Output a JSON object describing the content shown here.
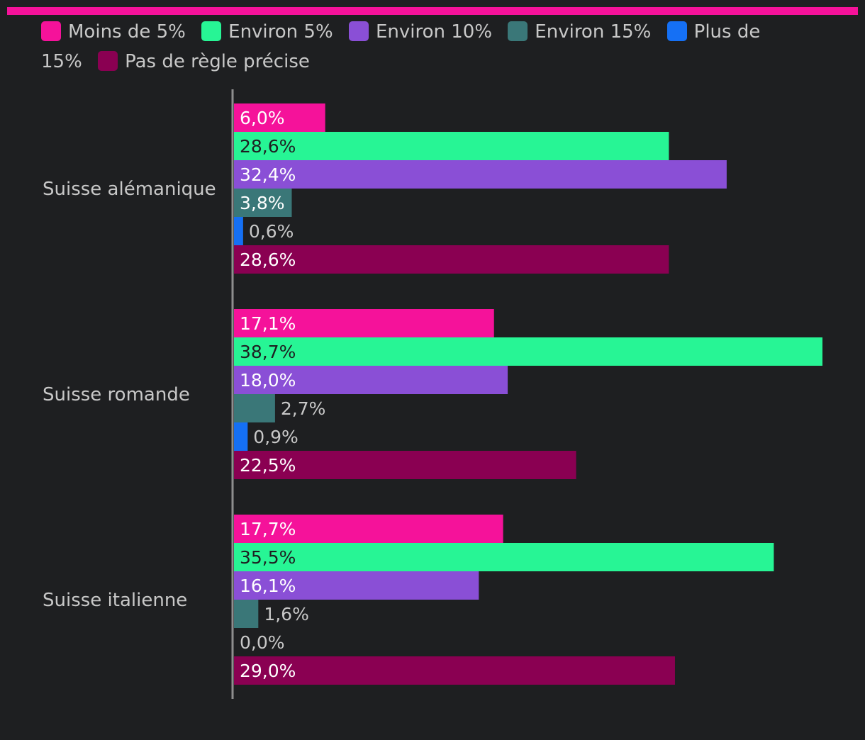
{
  "chart_data": {
    "type": "bar",
    "orientation": "horizontal",
    "categories": [
      "Suisse alémanique",
      "Suisse romande",
      "Suisse italienne"
    ],
    "series": [
      {
        "name": "Moins de 5%",
        "color": "#f5129a",
        "values": [
          6.0,
          17.1,
          17.7
        ],
        "labels": [
          "6,0%",
          "17,1%",
          "17,7%"
        ]
      },
      {
        "name": "Environ 5%",
        "color": "#27f595",
        "values": [
          28.6,
          38.7,
          35.5
        ],
        "labels": [
          "28,6%",
          "38,7%",
          "35,5%"
        ]
      },
      {
        "name": "Environ 10%",
        "color": "#8a4fd6",
        "values": [
          32.4,
          18.0,
          16.1
        ],
        "labels": [
          "32,4%",
          "18,0%",
          "16,1%"
        ]
      },
      {
        "name": "Environ 15%",
        "color": "#3a7778",
        "values": [
          3.8,
          2.7,
          1.6
        ],
        "labels": [
          "3,8%",
          "2,7%",
          "1,6%"
        ]
      },
      {
        "name": "Plus de 15%",
        "color": "#1570f5",
        "values": [
          0.6,
          0.9,
          0.0
        ],
        "labels": [
          "0,6%",
          "0,9%",
          "0,0%"
        ]
      },
      {
        "name": "Pas de règle précise",
        "color": "#8a0052",
        "values": [
          28.6,
          22.5,
          29.0
        ],
        "labels": [
          "28,6%",
          "22,5%",
          "29,0%"
        ]
      }
    ],
    "xlim": [
      0,
      38.7
    ],
    "grid": false,
    "legend_position": "top"
  }
}
